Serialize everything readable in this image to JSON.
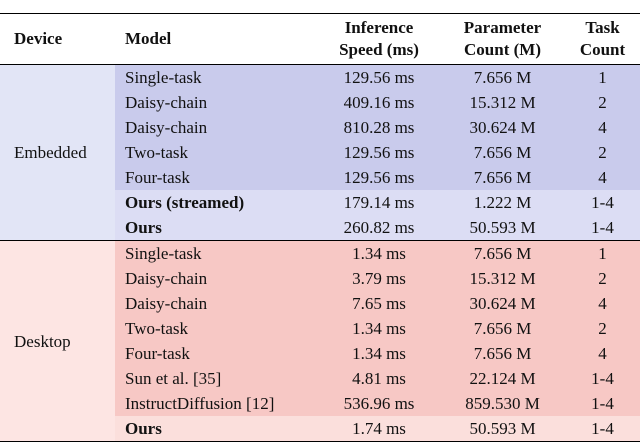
{
  "table": {
    "header": [
      "Device",
      "Model",
      "Inference Speed (ms)",
      "Parameter Count (M)",
      "Task Count"
    ],
    "groups": [
      {
        "device": "Embedded",
        "color": "#c9cbec",
        "highlight_color": "#dcddf4",
        "device_color": "#e2e5f6",
        "rows": [
          {
            "cells": [
              "Single-task",
              "129.56 ms",
              "7.656 M",
              "1"
            ],
            "bold": false
          },
          {
            "cells": [
              "Daisy-chain",
              "409.16 ms",
              "15.312 M",
              "2"
            ],
            "bold": false
          },
          {
            "cells": [
              "Daisy-chain",
              "810.28 ms",
              "30.624 M",
              "4"
            ],
            "bold": false
          },
          {
            "cells": [
              "Two-task",
              "129.56 ms",
              "7.656 M",
              "2"
            ],
            "bold": false
          },
          {
            "cells": [
              "Four-task",
              "129.56 ms",
              "7.656 M",
              "4"
            ],
            "bold": false
          },
          {
            "cells": [
              "Ours (streamed)",
              "179.14 ms",
              "1.222 M",
              "1-4"
            ],
            "bold": true
          },
          {
            "cells": [
              "Ours",
              "260.82 ms",
              "50.593 M",
              "1-4"
            ],
            "bold": true
          }
        ]
      },
      {
        "device": "Desktop",
        "color": "#f7c8c5",
        "highlight_color": "#fbdfdc",
        "device_color": "#fde5e3",
        "rows": [
          {
            "cells": [
              "Single-task",
              "1.34 ms",
              "7.656 M",
              "1"
            ],
            "bold": false
          },
          {
            "cells": [
              "Daisy-chain",
              "3.79 ms",
              "15.312 M",
              "2"
            ],
            "bold": false
          },
          {
            "cells": [
              "Daisy-chain",
              "7.65 ms",
              "30.624 M",
              "4"
            ],
            "bold": false
          },
          {
            "cells": [
              "Two-task",
              "1.34 ms",
              "7.656 M",
              "2"
            ],
            "bold": false
          },
          {
            "cells": [
              "Four-task",
              "1.34 ms",
              "7.656 M",
              "4"
            ],
            "bold": false
          },
          {
            "cells": [
              "Sun et al. [35]",
              "4.81 ms",
              "22.124 M",
              "1-4"
            ],
            "bold": false
          },
          {
            "cells": [
              "InstructDiffusion [12]",
              "536.96 ms",
              "859.530 M",
              "1-4"
            ],
            "bold": false
          },
          {
            "cells": [
              "Ours",
              "1.74 ms",
              "50.593 M",
              "1-4"
            ],
            "bold": true
          }
        ]
      }
    ]
  }
}
